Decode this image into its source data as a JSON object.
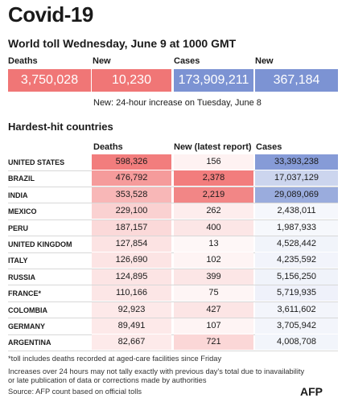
{
  "header": {
    "title": "Covid-19",
    "subtitle": "World toll Wednesday, June 9 at 1000 GMT"
  },
  "totals": {
    "deaths_label": "Deaths",
    "new_deaths_label": "New",
    "cases_label": "Cases",
    "new_cases_label": "New",
    "deaths": "3,750,028",
    "new_deaths": "10,230",
    "cases": "173,909,211",
    "new_cases": "367,184",
    "note": "New: 24-hour increase on Tuesday, June 8"
  },
  "table": {
    "section_title": "Hardest-hit countries",
    "col_deaths": "Deaths",
    "col_new": "New (latest report)",
    "col_cases": "Cases"
  },
  "colors": {
    "deaths_accent": "#f07676",
    "cases_accent": "#7c93d3"
  },
  "chart_data": {
    "type": "table",
    "title": "Hardest-hit countries",
    "columns": [
      "Deaths",
      "New (latest report)",
      "Cases"
    ],
    "rows": [
      {
        "country": "UNITED STATES",
        "deaths": 598326,
        "new": 156,
        "cases": 33393238,
        "deaths_text": "598,326",
        "new_text": "156",
        "cases_text": "33,393,238"
      },
      {
        "country": "BRAZIL",
        "deaths": 476792,
        "new": 2378,
        "cases": 17037129,
        "deaths_text": "476,792",
        "new_text": "2,378",
        "cases_text": "17,037,129"
      },
      {
        "country": "INDIA",
        "deaths": 353528,
        "new": 2219,
        "cases": 29089069,
        "deaths_text": "353,528",
        "new_text": "2,219",
        "cases_text": "29,089,069"
      },
      {
        "country": "MEXICO",
        "deaths": 229100,
        "new": 262,
        "cases": 2438011,
        "deaths_text": "229,100",
        "new_text": "262",
        "cases_text": "2,438,011"
      },
      {
        "country": "PERU",
        "deaths": 187157,
        "new": 400,
        "cases": 1987933,
        "deaths_text": "187,157",
        "new_text": "400",
        "cases_text": "1,987,933"
      },
      {
        "country": "UNITED KINGDOM",
        "deaths": 127854,
        "new": 13,
        "cases": 4528442,
        "deaths_text": "127,854",
        "new_text": "13",
        "cases_text": "4,528,442"
      },
      {
        "country": "ITALY",
        "deaths": 126690,
        "new": 102,
        "cases": 4235592,
        "deaths_text": "126,690",
        "new_text": "102",
        "cases_text": "4,235,592"
      },
      {
        "country": "RUSSIA",
        "deaths": 124895,
        "new": 399,
        "cases": 5156250,
        "deaths_text": "124,895",
        "new_text": "399",
        "cases_text": "5,156,250"
      },
      {
        "country": "FRANCE*",
        "deaths": 110166,
        "new": 75,
        "cases": 5719935,
        "deaths_text": "110,166",
        "new_text": "75",
        "cases_text": "5,719,935"
      },
      {
        "country": "COLOMBIA",
        "deaths": 92923,
        "new": 427,
        "cases": 3611602,
        "deaths_text": "92,923",
        "new_text": "427",
        "cases_text": "3,611,602"
      },
      {
        "country": "GERMANY",
        "deaths": 89491,
        "new": 107,
        "cases": 3705942,
        "deaths_text": "89,491",
        "new_text": "107",
        "cases_text": "3,705,942"
      },
      {
        "country": "ARGENTINA",
        "deaths": 82667,
        "new": 721,
        "cases": 4008708,
        "deaths_text": "82,667",
        "new_text": "721",
        "cases_text": "4,008,708"
      }
    ]
  },
  "footer": {
    "note1": "*toll includes deaths recorded at aged-care facilities since Friday",
    "note2": "Increases over 24 hours may not tally exactly with previous day's total due to inavailability",
    "note3": "or late publication of data or corrections made by authorities",
    "source": "Source: AFP count based on official tolls",
    "logo": "AFP"
  }
}
